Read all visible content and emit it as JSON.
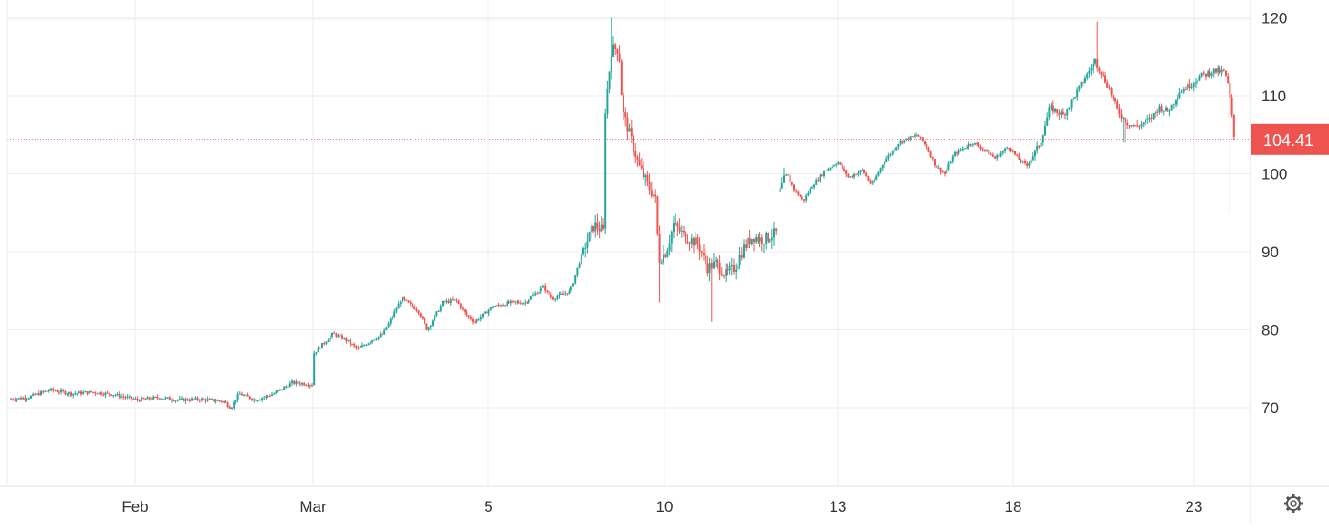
{
  "chart_data": {
    "type": "candlestick",
    "grid": true,
    "x_tick_labels": [
      "Feb",
      "Mar",
      "5",
      "10",
      "13",
      "18",
      "23"
    ],
    "y_tick_labels": [
      "70",
      "80",
      "90",
      "100",
      "110",
      "120"
    ],
    "ylim": [
      60,
      121
    ],
    "last_price": 104.41,
    "last_price_label": "104.41",
    "colors": {
      "up": "#26a69a",
      "down": "#ef5350",
      "grid": "#eeeeee",
      "axis_text": "#333333"
    },
    "anchor_points": [
      [
        0,
        71.0
      ],
      [
        30,
        71.3
      ],
      [
        55,
        72.3
      ],
      [
        78,
        71.8
      ],
      [
        100,
        72.0
      ],
      [
        125,
        71.7
      ],
      [
        150,
        71.0
      ],
      [
        175,
        71.3
      ],
      [
        195,
        71.0
      ],
      [
        220,
        71.1
      ],
      [
        245,
        70.8
      ],
      [
        253,
        70.0
      ],
      [
        262,
        71.8
      ],
      [
        280,
        71.0
      ],
      [
        300,
        71.8
      ],
      [
        320,
        73.2
      ],
      [
        343,
        73.0
      ],
      [
        344,
        77.0
      ],
      [
        365,
        79.5
      ],
      [
        378,
        78.8
      ],
      [
        392,
        77.5
      ],
      [
        405,
        78.5
      ],
      [
        420,
        79.5
      ],
      [
        440,
        84.0
      ],
      [
        458,
        82.5
      ],
      [
        468,
        80.0
      ],
      [
        485,
        83.5
      ],
      [
        500,
        83.8
      ],
      [
        510,
        82.0
      ],
      [
        520,
        81.0
      ],
      [
        540,
        83.0
      ],
      [
        560,
        83.5
      ],
      [
        575,
        83.5
      ],
      [
        595,
        85.5
      ],
      [
        605,
        84.0
      ],
      [
        625,
        85.0
      ],
      [
        638,
        90.0
      ],
      [
        651,
        93.5
      ],
      [
        662,
        92.5
      ],
      [
        663,
        108.0
      ],
      [
        670,
        116.0
      ],
      [
        678,
        116.0
      ],
      [
        682,
        108.0
      ],
      [
        690,
        105.0
      ],
      [
        700,
        101.0
      ],
      [
        712,
        98.0
      ],
      [
        718,
        97.0
      ],
      [
        722,
        89.0
      ],
      [
        730,
        90.0
      ],
      [
        738,
        93.5
      ],
      [
        750,
        92.0
      ],
      [
        765,
        91.0
      ],
      [
        775,
        88.0
      ],
      [
        785,
        88.5
      ],
      [
        795,
        87.0
      ],
      [
        805,
        88.0
      ],
      [
        815,
        90.5
      ],
      [
        825,
        92.0
      ],
      [
        835,
        91.5
      ],
      [
        852,
        92.5
      ],
      [
        854,
        97.5
      ],
      [
        862,
        100.0
      ],
      [
        870,
        98.0
      ],
      [
        880,
        96.5
      ],
      [
        890,
        98.5
      ],
      [
        905,
        100.5
      ],
      [
        918,
        101.5
      ],
      [
        930,
        99.5
      ],
      [
        945,
        100.5
      ],
      [
        955,
        98.5
      ],
      [
        968,
        101.5
      ],
      [
        985,
        104.0
      ],
      [
        1005,
        105.0
      ],
      [
        1015,
        103.5
      ],
      [
        1025,
        101.0
      ],
      [
        1035,
        100.0
      ],
      [
        1045,
        102.5
      ],
      [
        1065,
        104.0
      ],
      [
        1080,
        103.0
      ],
      [
        1090,
        102.0
      ],
      [
        1105,
        103.5
      ],
      [
        1115,
        102.0
      ],
      [
        1125,
        101.0
      ],
      [
        1140,
        104.0
      ],
      [
        1150,
        108.5
      ],
      [
        1165,
        107.5
      ],
      [
        1180,
        110.5
      ],
      [
        1200,
        114.5
      ],
      [
        1215,
        111.0
      ],
      [
        1225,
        108.0
      ],
      [
        1235,
        106.5
      ],
      [
        1245,
        106.0
      ],
      [
        1260,
        107.0
      ],
      [
        1270,
        108.5
      ],
      [
        1280,
        108.0
      ],
      [
        1292,
        110.5
      ],
      [
        1305,
        111.5
      ],
      [
        1315,
        112.5
      ],
      [
        1330,
        113.2
      ],
      [
        1342,
        113.0
      ],
      [
        1346,
        111.0
      ],
      [
        1349,
        108.0
      ],
      [
        1352,
        104.5
      ]
    ],
    "spikes": [
      {
        "at": 670,
        "value": 120.0
      },
      {
        "at": 722,
        "value": 83.5
      },
      {
        "at": 780,
        "value": 81.0
      },
      {
        "at": 1202,
        "value": 119.5
      },
      {
        "at": 1232,
        "value": 104.0
      },
      {
        "at": 1348,
        "value": 95.0
      }
    ],
    "x_gaps": [
      [
        343,
        344
      ],
      [
        662,
        663
      ],
      [
        852,
        854
      ]
    ]
  },
  "icons": {
    "settings": "gear-icon"
  }
}
